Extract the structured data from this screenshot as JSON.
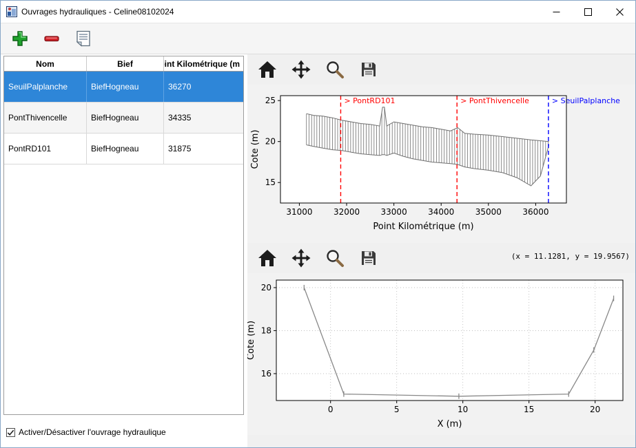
{
  "window": {
    "title": "Ouvrages hydrauliques - Celine08102024"
  },
  "toolbar": {
    "add_label": "Ajouter",
    "remove_label": "Supprimer",
    "report_label": "Liste"
  },
  "table": {
    "columns": [
      "Nom",
      "Bief",
      "Point Kilométrique (m"
    ],
    "rows": [
      {
        "cells": [
          "SeuilPalplanche",
          "BiefHogneau",
          "36270"
        ],
        "selected": true
      },
      {
        "cells": [
          "PontThivencelle",
          "BiefHogneau",
          "34335"
        ],
        "selected": false
      },
      {
        "cells": [
          "PontRD101",
          "BiefHogneau",
          "31875"
        ],
        "selected": false
      }
    ]
  },
  "checkbox": {
    "label": "Activer/Désactiver l'ouvrage hydraulique",
    "checked": true
  },
  "plots": {
    "coord_readout": "(x = 11.1281,  y = 19.9567)"
  },
  "colors": {
    "selection_blue": "#2e86d8",
    "annotation_red": "#ff0000",
    "annotation_blue": "#0000ff",
    "profile_gray": "#6e6e6e",
    "section_gray": "#888888"
  },
  "chart_data": [
    {
      "type": "area",
      "title": "",
      "xlabel": "Point Kilométrique (m)",
      "ylabel": "Cote (m)",
      "xlim": [
        30600,
        36650
      ],
      "ylim": [
        12.5,
        25.6
      ],
      "xticks": [
        31000,
        32000,
        33000,
        34000,
        35000,
        36000
      ],
      "yticks": [
        15,
        20,
        25
      ],
      "grid": false,
      "hatch_step": 55,
      "series": [
        {
          "name": "crete",
          "x": [
            31150,
            31300,
            31500,
            31700,
            31900,
            32100,
            32300,
            32500,
            32700,
            32760,
            32800,
            32850,
            33000,
            33200,
            33400,
            33600,
            33800,
            34000,
            34200,
            34350,
            34500,
            34700,
            35000,
            35300,
            35600,
            35900,
            36100,
            36280
          ],
          "y": [
            23.4,
            23.2,
            23.1,
            22.9,
            22.6,
            22.4,
            22.2,
            22.1,
            21.9,
            24.2,
            24.2,
            21.9,
            22.4,
            22.2,
            22.0,
            21.8,
            21.7,
            21.5,
            21.3,
            21.7,
            21.0,
            20.9,
            20.8,
            20.6,
            20.4,
            20.2,
            20.1,
            20.0
          ]
        },
        {
          "name": "fond",
          "x": [
            31150,
            31300,
            31500,
            31700,
            31900,
            32100,
            32300,
            32500,
            32700,
            32760,
            32800,
            32850,
            33000,
            33200,
            33400,
            33600,
            33800,
            34000,
            34200,
            34350,
            34500,
            34700,
            35000,
            35300,
            35600,
            35900,
            36100,
            36280
          ],
          "y": [
            19.6,
            19.4,
            19.2,
            19.0,
            18.9,
            18.7,
            18.5,
            18.4,
            18.3,
            18.4,
            18.4,
            18.3,
            18.6,
            18.2,
            17.9,
            17.7,
            17.5,
            17.4,
            17.3,
            17.2,
            16.9,
            16.7,
            16.5,
            16.2,
            15.6,
            14.6,
            15.8,
            19.6
          ]
        }
      ],
      "annotations": [
        {
          "label": "> PontRD101",
          "x": 31875,
          "color": "#ff0000"
        },
        {
          "label": "> PontThivencelle",
          "x": 34335,
          "color": "#ff0000"
        },
        {
          "label": "> SeuilPalplanche",
          "x": 36270,
          "color": "#0000ff"
        }
      ]
    },
    {
      "type": "line",
      "title": "",
      "xlabel": "X (m)",
      "ylabel": "Cote (m)",
      "xlim": [
        -4.1,
        22.1
      ],
      "ylim": [
        14.75,
        20.35
      ],
      "xticks": [
        0,
        5,
        10,
        15,
        20
      ],
      "yticks": [
        16,
        18,
        20
      ],
      "grid": true,
      "x": [
        -2,
        1,
        9.7,
        18,
        19.9,
        21.4
      ],
      "y": [
        20,
        15.05,
        14.95,
        15.05,
        17.1,
        19.5
      ]
    }
  ]
}
